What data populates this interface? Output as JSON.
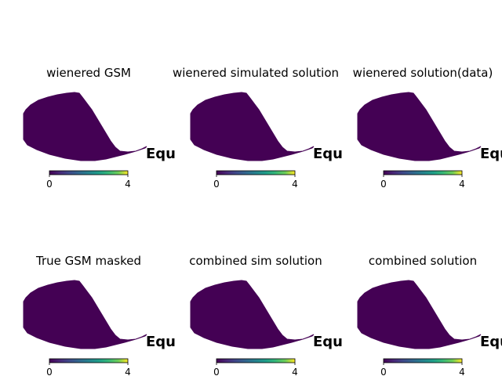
{
  "chart_data": {
    "type": "heatmap",
    "panels": [
      {
        "title": "wienered GSM",
        "coord_label": "Equ",
        "colorbar": {
          "min": 0,
          "max": 4,
          "ticks": [
            0,
            4
          ]
        },
        "map_value": 0
      },
      {
        "title": "wienered simulated solution",
        "coord_label": "Equ",
        "colorbar": {
          "min": 0,
          "max": 4,
          "ticks": [
            0,
            4
          ]
        },
        "map_value": 0
      },
      {
        "title": "wienered solution(data)",
        "coord_label": "Equ",
        "colorbar": {
          "min": 0,
          "max": 4,
          "ticks": [
            0,
            4
          ]
        },
        "map_value": 0
      },
      {
        "title": "True GSM masked",
        "coord_label": "Equ",
        "colorbar": {
          "min": 0,
          "max": 4,
          "ticks": [
            0,
            4
          ]
        },
        "map_value": 0
      },
      {
        "title": "combined sim solution",
        "coord_label": "Equ",
        "colorbar": {
          "min": 0,
          "max": 4,
          "ticks": [
            0,
            4
          ]
        },
        "map_value": 0
      },
      {
        "title": "combined solution",
        "coord_label": "Equ",
        "colorbar": {
          "min": 0,
          "max": 4,
          "ticks": [
            0,
            4
          ]
        },
        "map_value": 0
      }
    ],
    "colormap": "viridis",
    "colors": {
      "map_fill": "#440154",
      "text": "#000000"
    }
  }
}
